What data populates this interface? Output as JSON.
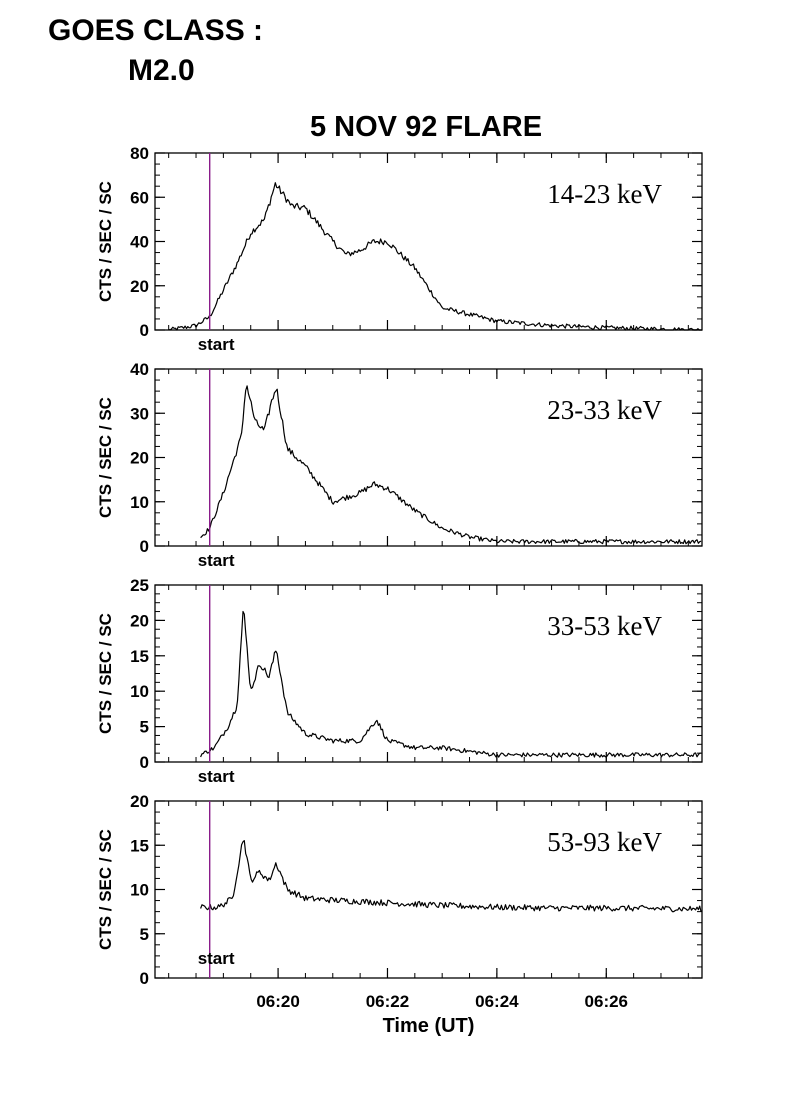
{
  "header": {
    "goes_label": "GOES CLASS :",
    "goes_value": "M2.0",
    "title": "5 NOV 92 FLARE"
  },
  "colors": {
    "trace": "#000000",
    "start_line": "#8a1c8a"
  },
  "chart_data": {
    "type": "line",
    "xlabel": "Time (UT)",
    "ylabel": "CTS / SEC / SC",
    "xticks": [
      "06:20",
      "06:22",
      "06:24",
      "06:26"
    ],
    "xrange_minutes": [
      "06:17:45",
      "06:27:45"
    ],
    "start_marker": {
      "time": "06:18:45",
      "label": "start"
    },
    "panels": [
      {
        "band": "14-23 keV",
        "ylim": [
          0,
          80
        ],
        "yticks": [
          0,
          20,
          40,
          60,
          80
        ],
        "x": [
          "06:18:00",
          "06:18:30",
          "06:18:45",
          "06:19:00",
          "06:19:15",
          "06:19:30",
          "06:19:45",
          "06:19:57",
          "06:20:15",
          "06:20:30",
          "06:21:00",
          "06:21:15",
          "06:21:30",
          "06:21:45",
          "06:22:00",
          "06:22:30",
          "06:23:00",
          "06:24:00",
          "06:25:00",
          "06:26:00",
          "06:27:45"
        ],
        "values": [
          0,
          2,
          6,
          18,
          30,
          44,
          50,
          66,
          56,
          55,
          40,
          34,
          36,
          40,
          40,
          28,
          10,
          4,
          2,
          1,
          0
        ]
      },
      {
        "band": "23-33 keV",
        "ylim": [
          0,
          40
        ],
        "yticks": [
          0,
          10,
          20,
          30,
          40
        ],
        "x": [
          "06:18:35",
          "06:18:45",
          "06:19:00",
          "06:19:20",
          "06:19:25",
          "06:19:35",
          "06:19:45",
          "06:19:52",
          "06:19:58",
          "06:20:10",
          "06:20:30",
          "06:21:00",
          "06:21:30",
          "06:21:45",
          "06:22:00",
          "06:22:30",
          "06:23:00",
          "06:23:30",
          "06:24:00",
          "06:25:00",
          "06:26:00",
          "06:27:45"
        ],
        "values": [
          2,
          4,
          12,
          25,
          37,
          28,
          26,
          32,
          36,
          22,
          18,
          10,
          12,
          14,
          13,
          8,
          4,
          2,
          1,
          1,
          1,
          1
        ]
      },
      {
        "band": "33-53 keV",
        "ylim": [
          0,
          25
        ],
        "yticks": [
          0,
          5,
          10,
          15,
          20,
          25
        ],
        "x": [
          "06:18:35",
          "06:18:50",
          "06:19:05",
          "06:19:15",
          "06:19:22",
          "06:19:30",
          "06:19:40",
          "06:19:50",
          "06:19:58",
          "06:20:10",
          "06:20:30",
          "06:21:00",
          "06:21:30",
          "06:21:48",
          "06:22:00",
          "06:22:30",
          "06:23:00",
          "06:24:00",
          "06:25:00",
          "06:26:00",
          "06:27:45"
        ],
        "values": [
          1,
          2,
          5,
          8,
          22,
          10,
          14,
          12,
          16,
          7,
          4,
          3,
          3,
          6,
          3,
          2,
          2,
          1,
          1,
          1,
          1
        ]
      },
      {
        "band": "53-93 keV",
        "ylim": [
          0,
          20
        ],
        "yticks": [
          0,
          5,
          10,
          15,
          20
        ],
        "x": [
          "06:18:35",
          "06:18:55",
          "06:19:10",
          "06:19:22",
          "06:19:30",
          "06:19:40",
          "06:19:50",
          "06:19:58",
          "06:20:10",
          "06:20:30",
          "06:21:00",
          "06:22:00",
          "06:23:00",
          "06:24:00",
          "06:25:00",
          "06:26:00",
          "06:27:45"
        ],
        "values": [
          8,
          8,
          9,
          16,
          11,
          12,
          11,
          13,
          10,
          9,
          8.8,
          8.5,
          8.2,
          8,
          7.9,
          7.9,
          7.8
        ]
      }
    ]
  }
}
